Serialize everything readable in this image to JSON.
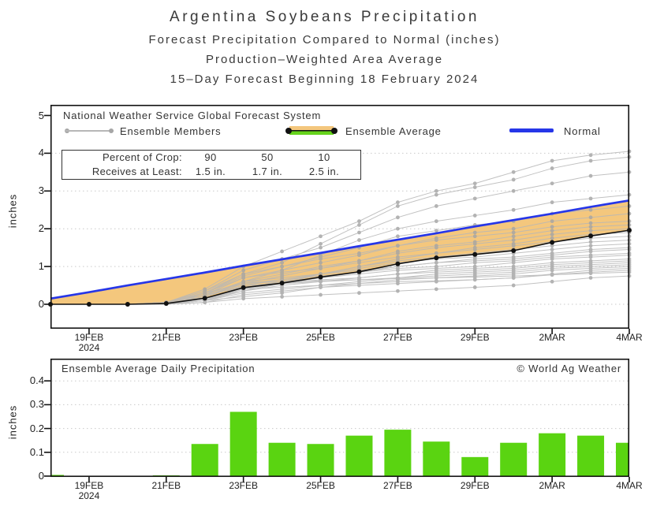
{
  "header": {
    "title": "Argentina Soybeans Precipitation",
    "subtitle1": "Forecast Precipitation Compared to Normal (inches)",
    "subtitle2": "Production–Weighted Area Average",
    "subtitle3": "15–Day Forecast Beginning 18 February 2024"
  },
  "top_chart": {
    "source_label": "National Weather Service Global Forecast System",
    "legend": [
      {
        "label": "Ensemble Members",
        "swatch": "gray-line-with-dots"
      },
      {
        "label": "Ensemble Average",
        "swatch": "orange-green-band-black-line"
      },
      {
        "label": "Normal",
        "swatch": "blue-line"
      }
    ],
    "crop_table": {
      "rows": [
        {
          "label": "Percent of Crop:",
          "values": [
            "90",
            "50",
            "10"
          ]
        },
        {
          "label": "Receives at Least:",
          "values": [
            "1.5 in.",
            "1.7 in.",
            "2.5 in."
          ]
        }
      ]
    },
    "ylabel": "inches"
  },
  "bottom_chart": {
    "title": "Ensemble Average Daily Precipitation",
    "watermark": "© World Ag Weather",
    "ylabel": "inches"
  },
  "x_axis": {
    "tick_labels": [
      "19FEB",
      "21FEB",
      "23FEB",
      "25FEB",
      "27FEB",
      "29FEB",
      "2MAR",
      "4MAR"
    ],
    "tick_day_indices": [
      1,
      3,
      5,
      7,
      9,
      11,
      13,
      15
    ],
    "year_label": "2024"
  },
  "colors": {
    "normal_line": "#2636e8",
    "ensemble_average_line": "#111111",
    "band_fill": "#f4c77d",
    "member_line": "#b7b7b7",
    "member_dot": "#a6a6a6",
    "bar_fill": "#5ad411",
    "legend_green": "#66d41c",
    "grid": "#c9c9c9",
    "frame": "#111111"
  },
  "chart_data": [
    {
      "type": "line",
      "title": "15-Day cumulative forecast precipitation vs normal",
      "x": [
        "18FEB",
        "19FEB",
        "20FEB",
        "21FEB",
        "22FEB",
        "23FEB",
        "24FEB",
        "25FEB",
        "26FEB",
        "27FEB",
        "28FEB",
        "29FEB",
        "1MAR",
        "2MAR",
        "3MAR",
        "4MAR"
      ],
      "xlabel": "",
      "ylabel": "inches",
      "ylim": [
        0,
        5
      ],
      "y_ticks": [
        0,
        1,
        2,
        3,
        4,
        5
      ],
      "grid": "dotted horizontal at 0,1,2,3,4",
      "legend_position": "top-left inside",
      "series": [
        {
          "name": "Normal",
          "values": [
            0.15,
            0.32,
            0.5,
            0.67,
            0.84,
            1.02,
            1.19,
            1.36,
            1.54,
            1.71,
            1.88,
            2.06,
            2.23,
            2.4,
            2.58,
            2.75
          ]
        },
        {
          "name": "Ensemble Average",
          "values": [
            0,
            0,
            0,
            0.02,
            0.16,
            0.44,
            0.56,
            0.72,
            0.86,
            1.07,
            1.23,
            1.32,
            1.42,
            1.64,
            1.81,
            1.96
          ]
        }
      ],
      "band": {
        "name": "Below-normal deficit shading",
        "between": [
          "Normal",
          "Ensemble Average"
        ]
      },
      "members": [
        [
          0,
          0,
          0,
          0,
          0.05,
          0.15,
          0.2,
          0.25,
          0.3,
          0.35,
          0.4,
          0.45,
          0.5,
          0.6,
          0.7,
          0.75
        ],
        [
          0,
          0,
          0,
          0.05,
          0.3,
          0.55,
          0.6,
          0.62,
          0.65,
          0.68,
          0.7,
          0.72,
          0.75,
          0.78,
          0.82,
          0.85
        ],
        [
          0,
          0,
          0,
          0,
          0.1,
          0.4,
          0.45,
          0.5,
          0.55,
          0.6,
          0.62,
          0.65,
          0.7,
          0.78,
          0.85,
          0.9
        ],
        [
          0,
          0,
          0,
          0.02,
          0.1,
          0.2,
          0.3,
          0.45,
          0.5,
          0.55,
          0.6,
          0.65,
          0.7,
          0.8,
          0.9,
          0.95
        ],
        [
          0,
          0,
          0,
          0,
          0.05,
          0.25,
          0.35,
          0.45,
          0.55,
          0.65,
          0.7,
          0.75,
          0.8,
          0.9,
          0.95,
          1.0
        ],
        [
          0,
          0,
          0,
          0.03,
          0.2,
          0.5,
          0.55,
          0.6,
          0.65,
          0.7,
          0.75,
          0.8,
          0.85,
          0.95,
          1.0,
          1.05
        ],
        [
          0,
          0,
          0,
          0,
          0.1,
          0.3,
          0.4,
          0.5,
          0.6,
          0.7,
          0.8,
          0.85,
          0.9,
          1.0,
          1.05,
          1.1
        ],
        [
          0,
          0,
          0,
          0.05,
          0.25,
          0.45,
          0.55,
          0.65,
          0.7,
          0.8,
          0.85,
          0.9,
          0.95,
          1.05,
          1.1,
          1.15
        ],
        [
          0,
          0,
          0,
          0,
          0.15,
          0.35,
          0.5,
          0.6,
          0.7,
          0.8,
          0.9,
          0.95,
          1.0,
          1.1,
          1.15,
          1.2
        ],
        [
          0,
          0,
          0,
          0.02,
          0.1,
          0.45,
          0.6,
          0.7,
          0.8,
          0.9,
          0.95,
          1.0,
          1.1,
          1.2,
          1.25,
          1.3
        ],
        [
          0,
          0,
          0,
          0,
          0.2,
          0.55,
          0.65,
          0.75,
          0.85,
          0.95,
          1.0,
          1.1,
          1.15,
          1.25,
          1.3,
          1.35
        ],
        [
          0,
          0,
          0,
          0.05,
          0.15,
          0.4,
          0.55,
          0.7,
          0.85,
          1.0,
          1.1,
          1.15,
          1.2,
          1.3,
          1.4,
          1.45
        ],
        [
          0,
          0,
          0,
          0,
          0.1,
          0.5,
          0.65,
          0.8,
          0.9,
          1.0,
          1.1,
          1.2,
          1.25,
          1.35,
          1.45,
          1.5
        ],
        [
          0,
          0,
          0,
          0.03,
          0.2,
          0.6,
          0.7,
          0.8,
          0.95,
          1.1,
          1.2,
          1.25,
          1.35,
          1.45,
          1.55,
          1.6
        ],
        [
          0,
          0,
          0,
          0,
          0.15,
          0.45,
          0.6,
          0.8,
          1.0,
          1.15,
          1.25,
          1.35,
          1.45,
          1.55,
          1.65,
          1.7
        ],
        [
          0,
          0,
          0,
          0.05,
          0.3,
          0.7,
          0.85,
          0.95,
          1.1,
          1.25,
          1.35,
          1.45,
          1.55,
          1.65,
          1.75,
          1.8
        ],
        [
          0,
          0,
          0,
          0,
          0.1,
          0.35,
          0.55,
          0.8,
          1.0,
          1.2,
          1.35,
          1.5,
          1.6,
          1.75,
          1.85,
          1.9
        ],
        [
          0,
          0,
          0,
          0.04,
          0.25,
          0.6,
          0.8,
          1.0,
          1.15,
          1.35,
          1.5,
          1.6,
          1.7,
          1.85,
          1.95,
          2.0
        ],
        [
          0,
          0,
          0,
          0,
          0.2,
          0.55,
          0.75,
          0.95,
          1.15,
          1.4,
          1.55,
          1.65,
          1.8,
          1.95,
          2.05,
          2.1
        ],
        [
          0,
          0,
          0,
          0.05,
          0.35,
          0.8,
          1.0,
          1.2,
          1.35,
          1.55,
          1.7,
          1.8,
          1.9,
          2.05,
          2.15,
          2.2
        ],
        [
          0,
          0,
          0,
          0,
          0.25,
          0.7,
          0.9,
          1.1,
          1.3,
          1.55,
          1.75,
          1.9,
          2.0,
          2.2,
          2.3,
          2.4
        ],
        [
          0,
          0,
          0,
          0.05,
          0.3,
          0.75,
          1.0,
          1.25,
          1.5,
          1.8,
          1.95,
          2.1,
          2.2,
          2.4,
          2.5,
          2.6
        ],
        [
          0,
          0,
          0,
          0,
          0.2,
          0.6,
          0.9,
          1.3,
          1.7,
          2.0,
          2.2,
          2.35,
          2.5,
          2.7,
          2.8,
          2.9
        ],
        [
          0,
          0,
          0,
          0.05,
          0.35,
          0.9,
          1.2,
          1.5,
          1.9,
          2.3,
          2.6,
          2.8,
          3.0,
          3.2,
          3.4,
          3.5
        ],
        [
          0,
          0,
          0,
          0,
          0.3,
          0.8,
          1.1,
          1.6,
          2.1,
          2.6,
          2.9,
          3.1,
          3.3,
          3.6,
          3.8,
          3.9
        ],
        [
          0,
          0,
          0,
          0.05,
          0.4,
          1.0,
          1.4,
          1.8,
          2.2,
          2.7,
          3.0,
          3.2,
          3.5,
          3.8,
          3.95,
          4.05
        ]
      ]
    },
    {
      "type": "bar",
      "title": "Ensemble Average Daily Precipitation",
      "categories": [
        "18FEB",
        "19FEB",
        "20FEB",
        "21FEB",
        "22FEB",
        "23FEB",
        "24FEB",
        "25FEB",
        "26FEB",
        "27FEB",
        "28FEB",
        "29FEB",
        "1MAR",
        "2MAR",
        "3MAR",
        "4MAR"
      ],
      "values": [
        0.005,
        0,
        0,
        0.003,
        0.135,
        0.27,
        0.14,
        0.135,
        0.17,
        0.195,
        0.145,
        0.08,
        0.14,
        0.18,
        0.17,
        0.14
      ],
      "xlabel": "",
      "ylabel": "inches",
      "ylim": [
        0,
        0.45
      ],
      "y_ticks": [
        0,
        0.1,
        0.2,
        0.3,
        0.4
      ],
      "grid": "dotted horizontal at 0.1,0.2,0.3,0.4"
    }
  ]
}
